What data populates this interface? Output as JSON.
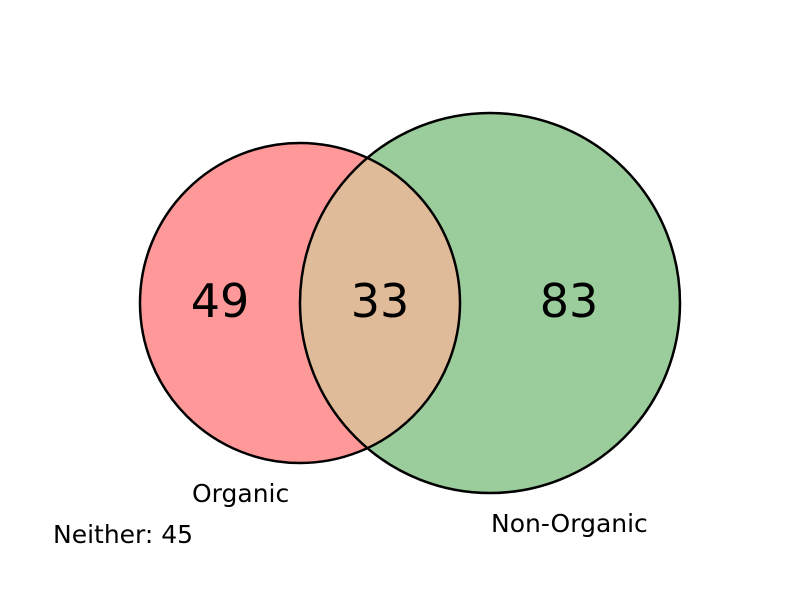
{
  "chart_data": {
    "type": "venn",
    "sets": [
      {
        "name": "Organic",
        "only_count": 49,
        "color": "#ff9999"
      },
      {
        "name": "Non-Organic",
        "only_count": 83,
        "color": "#9bcc9b"
      }
    ],
    "intersection": {
      "count": 33,
      "color": "#dfbb99"
    },
    "neither": {
      "label": "Neither",
      "count": 45,
      "text": "Neither: 45"
    },
    "outline_color": "#000000"
  }
}
